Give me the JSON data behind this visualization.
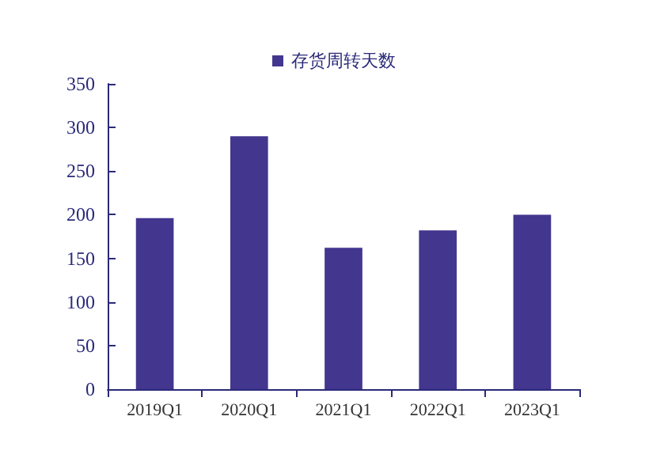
{
  "chart_data": {
    "type": "bar",
    "categories": [
      "2019Q1",
      "2020Q1",
      "2021Q1",
      "2022Q1",
      "2023Q1"
    ],
    "series": [
      {
        "name": "存货周转天数",
        "color": "#43368f",
        "values": [
          196,
          290,
          162,
          182,
          200
        ]
      }
    ],
    "ylim": [
      0,
      350
    ],
    "yticks": [
      0,
      50,
      100,
      150,
      200,
      250,
      300,
      350
    ],
    "grid": false,
    "legend": "top"
  }
}
